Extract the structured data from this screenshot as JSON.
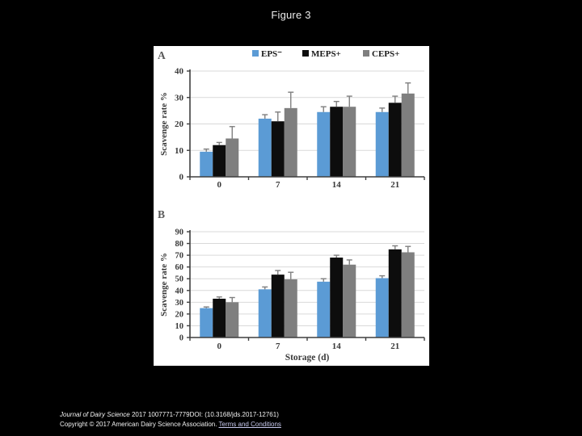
{
  "page": {
    "title": "Figure 3",
    "background": "#000000"
  },
  "footer": {
    "journal": "Journal of Dairy Science",
    "line1_rest": " 2017 1007771-7779DOI: (10.3168/jds.2017-12761)",
    "copyright": "Copyright © 2017 American Dairy Science Association. ",
    "terms_label": "Terms and Conditions"
  },
  "chart_data": [
    {
      "type": "bar",
      "panel": "A",
      "title": "",
      "xlabel": "",
      "ylabel": "Scavenge rate %",
      "ylim": [
        0,
        40
      ],
      "ytick_step": 10,
      "grid": true,
      "legend_position": "top",
      "categories": [
        "0",
        "7",
        "14",
        "21"
      ],
      "series": [
        {
          "name": "EPS⁻",
          "color": "#5b9bd5",
          "values": [
            9.5,
            22,
            24.5,
            24.5
          ],
          "errors": [
            1,
            1.5,
            2,
            1.5
          ]
        },
        {
          "name": "MEPS+",
          "color": "#0d0d0d",
          "values": [
            12,
            21,
            26.5,
            28
          ],
          "errors": [
            1,
            3.5,
            2,
            2.5
          ]
        },
        {
          "name": "CEPS+",
          "color": "#7f7f7f",
          "values": [
            14.5,
            26,
            26.5,
            31.5
          ],
          "errors": [
            4.5,
            6,
            4,
            4
          ]
        }
      ],
      "error_bar_color": "#7f7f7f"
    },
    {
      "type": "bar",
      "panel": "B",
      "title": "",
      "xlabel": "Storage (d)",
      "ylabel": "Scavenge rate %",
      "ylim": [
        0,
        90
      ],
      "ytick_step": 10,
      "grid": true,
      "legend_position": "none",
      "categories": [
        "0",
        "7",
        "14",
        "21"
      ],
      "series": [
        {
          "name": "EPS⁻",
          "color": "#5b9bd5",
          "values": [
            25,
            41,
            47.5,
            50.5
          ],
          "errors": [
            1,
            2,
            2.5,
            2
          ]
        },
        {
          "name": "MEPS+",
          "color": "#0d0d0d",
          "values": [
            33,
            53.5,
            68,
            75
          ],
          "errors": [
            1.5,
            3.5,
            2,
            3
          ]
        },
        {
          "name": "CEPS+",
          "color": "#7f7f7f",
          "values": [
            30,
            49.5,
            62,
            72.5
          ],
          "errors": [
            4,
            6,
            4,
            5
          ]
        }
      ],
      "error_bar_color": "#7f7f7f"
    }
  ]
}
